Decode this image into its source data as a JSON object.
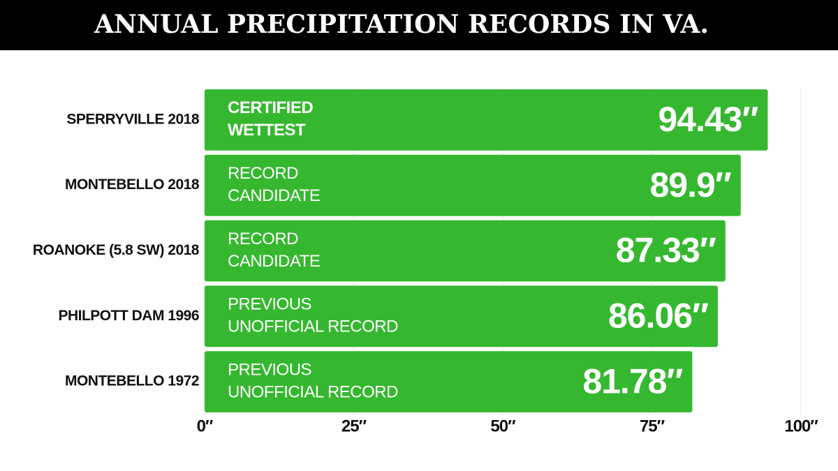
{
  "chart_data": {
    "type": "hbar",
    "title": "ANNUAL PRECIPITATION RECORDS IN VA.",
    "categories": [
      "SPERRYVILLE 2018",
      "MONTEBELLO 2018",
      "ROANOKE (5.8 SW) 2018",
      "PHILPOTT DAM 1996",
      "MONTEBELLO 1972"
    ],
    "values": [
      94.43,
      89.9,
      87.33,
      86.06,
      81.78
    ],
    "value_labels": [
      "94.43″",
      "89.9″",
      "87.33″",
      "86.06″",
      "81.78″"
    ],
    "annotations": [
      [
        "CERTIFIED",
        "WETTEST"
      ],
      [
        "RECORD",
        "CANDIDATE"
      ],
      [
        "RECORD",
        "CANDIDATE"
      ],
      [
        "PREVIOUS",
        "UNOFFICIAL RECORD"
      ],
      [
        "PREVIOUS",
        "UNOFFICIAL RECORD"
      ]
    ],
    "color": "#35b82f",
    "xlim": [
      0,
      100
    ],
    "xticks": [
      {
        "value": 0,
        "label": "0″"
      },
      {
        "value": 25,
        "label": "25″"
      },
      {
        "value": 50,
        "label": "50″"
      },
      {
        "value": 75,
        "label": "75″"
      },
      {
        "value": 100,
        "label": "100″"
      }
    ],
    "grid": true
  }
}
